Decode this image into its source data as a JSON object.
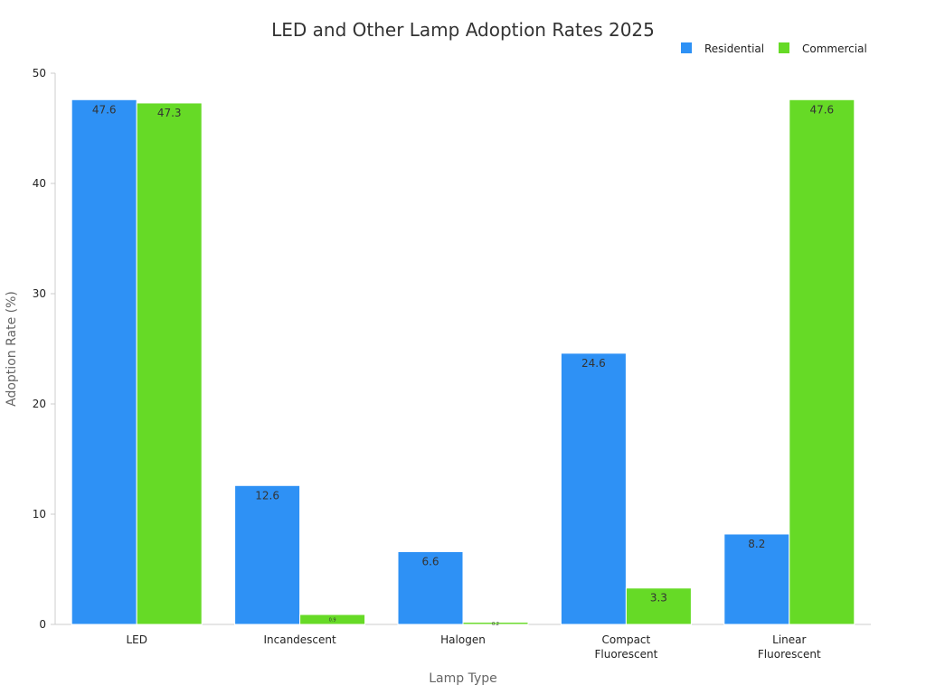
{
  "chart_data": {
    "type": "bar",
    "title": "LED and Other Lamp Adoption Rates 2025",
    "xlabel": "Lamp Type",
    "ylabel": "Adoption Rate (%)",
    "ylim": [
      0,
      50
    ],
    "yticks": [
      0,
      10,
      20,
      30,
      40,
      50
    ],
    "categories": [
      [
        "LED"
      ],
      [
        "Incandescent"
      ],
      [
        "Halogen"
      ],
      [
        "Compact",
        "Fluorescent"
      ],
      [
        "Linear",
        "Fluorescent"
      ]
    ],
    "series": [
      {
        "name": "Residential",
        "color": "#2E91F5",
        "values": [
          47.6,
          12.6,
          6.6,
          24.6,
          8.2
        ],
        "labels": [
          "47.6",
          "12.6",
          "6.6",
          "24.6",
          "8.2"
        ]
      },
      {
        "name": "Commercial",
        "color": "#66DA26",
        "values": [
          47.3,
          0.9,
          0.2,
          3.3,
          47.6
        ],
        "labels": [
          "47.3",
          "0.9",
          "0.2",
          "3.3",
          "47.6"
        ]
      }
    ],
    "legend": "top-right",
    "grid": false
  }
}
